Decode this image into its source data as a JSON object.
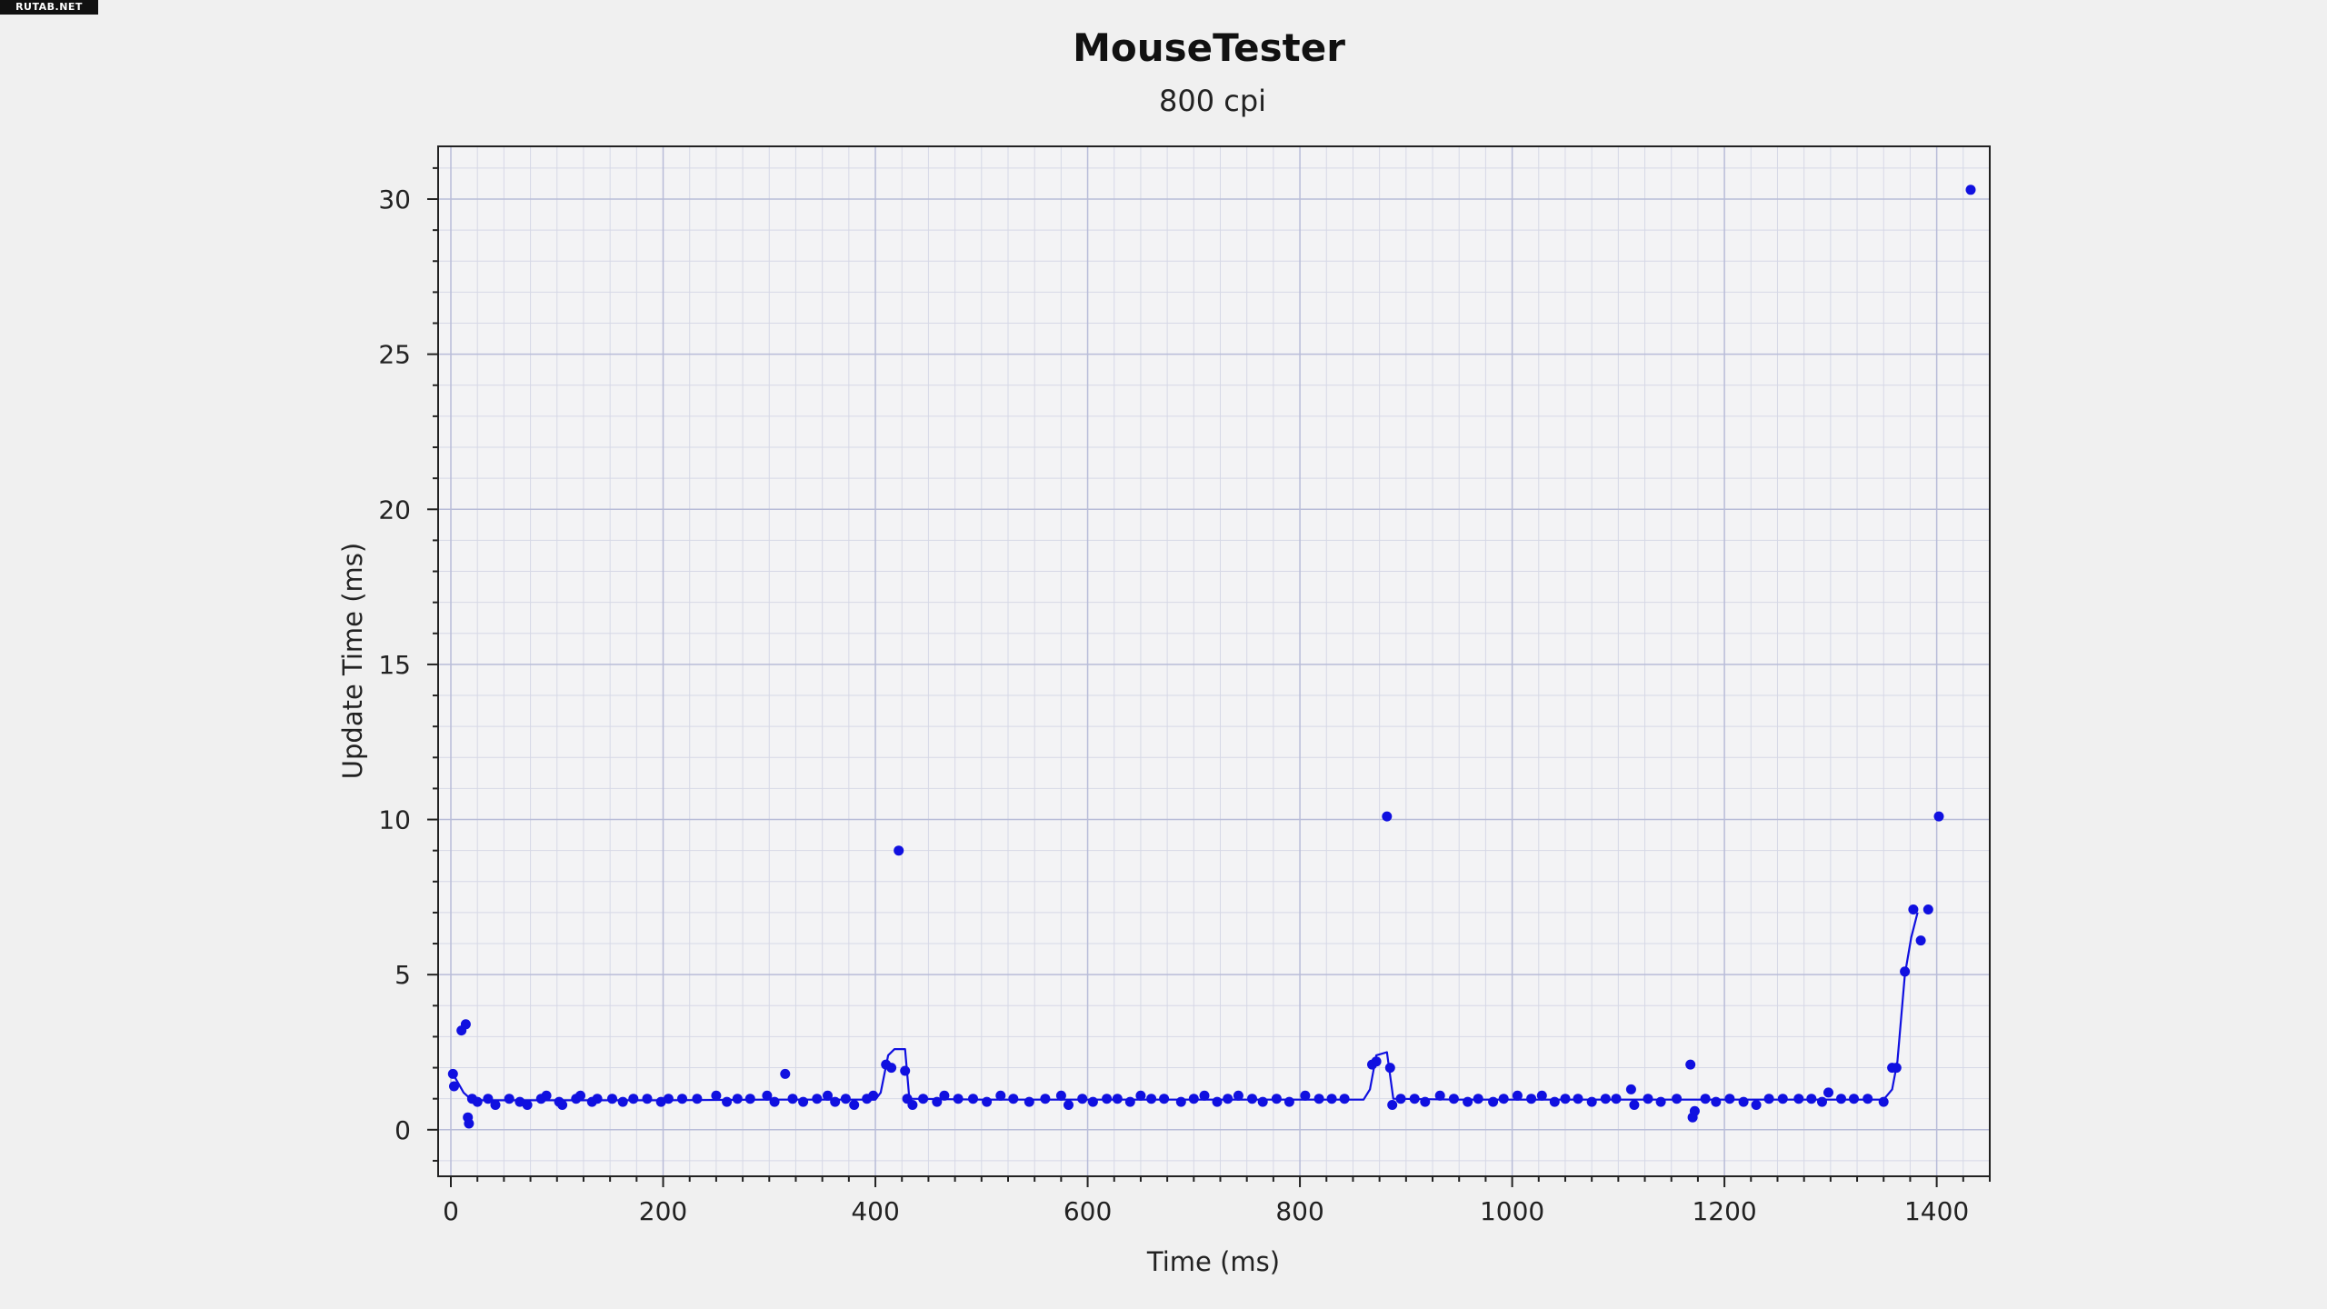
{
  "watermark": "RUTAB.NET",
  "chart_data": {
    "type": "scatter",
    "title": "MouseTester",
    "subtitle": "800 cpi",
    "xlabel": "Time (ms)",
    "ylabel": "Update Time (ms)",
    "xlim": [
      -12,
      1450
    ],
    "ylim": [
      -1.5,
      31.7
    ],
    "x_ticks": [
      0,
      200,
      400,
      600,
      800,
      1000,
      1200,
      1400
    ],
    "y_ticks": [
      0,
      5,
      10,
      15,
      20,
      25,
      30
    ],
    "grid": true,
    "colors": {
      "series": "#1010e0",
      "grid_major": "#b8bcd8",
      "grid_minor": "#d6d8e6",
      "plot_bg": "#f3f3f5",
      "axis": "#222222"
    },
    "series": [
      {
        "marker": "dot",
        "points": [
          [
            2,
            1.8
          ],
          [
            3,
            1.4
          ],
          [
            10,
            3.2
          ],
          [
            14,
            3.4
          ],
          [
            16,
            0.4
          ],
          [
            17,
            0.2
          ],
          [
            20,
            1.0
          ],
          [
            25,
            0.9
          ],
          [
            35,
            1.0
          ],
          [
            42,
            0.8
          ],
          [
            55,
            1.0
          ],
          [
            65,
            0.9
          ],
          [
            72,
            0.8
          ],
          [
            85,
            1.0
          ],
          [
            90,
            1.1
          ],
          [
            102,
            0.9
          ],
          [
            105,
            0.8
          ],
          [
            118,
            1.0
          ],
          [
            122,
            1.1
          ],
          [
            133,
            0.9
          ],
          [
            138,
            1.0
          ],
          [
            152,
            1.0
          ],
          [
            162,
            0.9
          ],
          [
            172,
            1.0
          ],
          [
            185,
            1.0
          ],
          [
            198,
            0.9
          ],
          [
            205,
            1.0
          ],
          [
            218,
            1.0
          ],
          [
            232,
            1.0
          ],
          [
            250,
            1.1
          ],
          [
            260,
            0.9
          ],
          [
            270,
            1.0
          ],
          [
            282,
            1.0
          ],
          [
            298,
            1.1
          ],
          [
            305,
            0.9
          ],
          [
            315,
            1.8
          ],
          [
            322,
            1.0
          ],
          [
            332,
            0.9
          ],
          [
            345,
            1.0
          ],
          [
            355,
            1.1
          ],
          [
            362,
            0.9
          ],
          [
            372,
            1.0
          ],
          [
            380,
            0.8
          ],
          [
            392,
            1.0
          ],
          [
            398,
            1.1
          ],
          [
            410,
            2.1
          ],
          [
            415,
            2.0
          ],
          [
            422,
            9.0
          ],
          [
            428,
            1.9
          ],
          [
            430,
            1.0
          ],
          [
            435,
            0.8
          ],
          [
            445,
            1.0
          ],
          [
            458,
            0.9
          ],
          [
            465,
            1.1
          ],
          [
            478,
            1.0
          ],
          [
            492,
            1.0
          ],
          [
            505,
            0.9
          ],
          [
            518,
            1.1
          ],
          [
            530,
            1.0
          ],
          [
            545,
            0.9
          ],
          [
            560,
            1.0
          ],
          [
            575,
            1.1
          ],
          [
            582,
            0.8
          ],
          [
            595,
            1.0
          ],
          [
            605,
            0.9
          ],
          [
            618,
            1.0
          ],
          [
            628,
            1.0
          ],
          [
            640,
            0.9
          ],
          [
            650,
            1.1
          ],
          [
            660,
            1.0
          ],
          [
            672,
            1.0
          ],
          [
            688,
            0.9
          ],
          [
            700,
            1.0
          ],
          [
            710,
            1.1
          ],
          [
            722,
            0.9
          ],
          [
            732,
            1.0
          ],
          [
            742,
            1.1
          ],
          [
            755,
            1.0
          ],
          [
            765,
            0.9
          ],
          [
            778,
            1.0
          ],
          [
            790,
            0.9
          ],
          [
            805,
            1.1
          ],
          [
            818,
            1.0
          ],
          [
            830,
            1.0
          ],
          [
            842,
            1.0
          ],
          [
            868,
            2.1
          ],
          [
            872,
            2.2
          ],
          [
            882,
            10.1
          ],
          [
            885,
            2.0
          ],
          [
            887,
            0.8
          ],
          [
            895,
            1.0
          ],
          [
            908,
            1.0
          ],
          [
            918,
            0.9
          ],
          [
            932,
            1.1
          ],
          [
            945,
            1.0
          ],
          [
            958,
            0.9
          ],
          [
            968,
            1.0
          ],
          [
            982,
            0.9
          ],
          [
            992,
            1.0
          ],
          [
            1005,
            1.1
          ],
          [
            1018,
            1.0
          ],
          [
            1028,
            1.1
          ],
          [
            1040,
            0.9
          ],
          [
            1050,
            1.0
          ],
          [
            1062,
            1.0
          ],
          [
            1075,
            0.9
          ],
          [
            1088,
            1.0
          ],
          [
            1098,
            1.0
          ],
          [
            1112,
            1.3
          ],
          [
            1115,
            0.8
          ],
          [
            1128,
            1.0
          ],
          [
            1140,
            0.9
          ],
          [
            1155,
            1.0
          ],
          [
            1168,
            2.1
          ],
          [
            1170,
            0.4
          ],
          [
            1172,
            0.6
          ],
          [
            1182,
            1.0
          ],
          [
            1192,
            0.9
          ],
          [
            1205,
            1.0
          ],
          [
            1218,
            0.9
          ],
          [
            1230,
            0.8
          ],
          [
            1242,
            1.0
          ],
          [
            1255,
            1.0
          ],
          [
            1270,
            1.0
          ],
          [
            1282,
            1.0
          ],
          [
            1292,
            0.9
          ],
          [
            1298,
            1.2
          ],
          [
            1310,
            1.0
          ],
          [
            1322,
            1.0
          ],
          [
            1335,
            1.0
          ],
          [
            1350,
            0.9
          ],
          [
            1358,
            2.0
          ],
          [
            1362,
            2.0
          ],
          [
            1370,
            5.1
          ],
          [
            1378,
            7.1
          ],
          [
            1385,
            6.1
          ],
          [
            1392,
            7.1
          ],
          [
            1402,
            10.1
          ],
          [
            1432,
            30.3
          ]
        ]
      },
      {
        "marker": "line",
        "points": [
          [
            2,
            1.8
          ],
          [
            12,
            1.2
          ],
          [
            20,
            0.95
          ],
          [
            100,
            0.95
          ],
          [
            200,
            0.95
          ],
          [
            300,
            0.97
          ],
          [
            400,
            0.97
          ],
          [
            405,
            1.2
          ],
          [
            412,
            2.4
          ],
          [
            418,
            2.6
          ],
          [
            428,
            2.6
          ],
          [
            432,
            1.0
          ],
          [
            500,
            0.97
          ],
          [
            600,
            0.97
          ],
          [
            700,
            0.97
          ],
          [
            800,
            0.97
          ],
          [
            860,
            0.97
          ],
          [
            866,
            1.3
          ],
          [
            872,
            2.4
          ],
          [
            882,
            2.5
          ],
          [
            888,
            1.0
          ],
          [
            950,
            0.97
          ],
          [
            1050,
            0.97
          ],
          [
            1150,
            0.97
          ],
          [
            1250,
            0.97
          ],
          [
            1350,
            0.97
          ],
          [
            1358,
            1.3
          ],
          [
            1363,
            2.2
          ],
          [
            1370,
            5.0
          ],
          [
            1376,
            6.2
          ],
          [
            1382,
            7.0
          ]
        ]
      }
    ]
  }
}
